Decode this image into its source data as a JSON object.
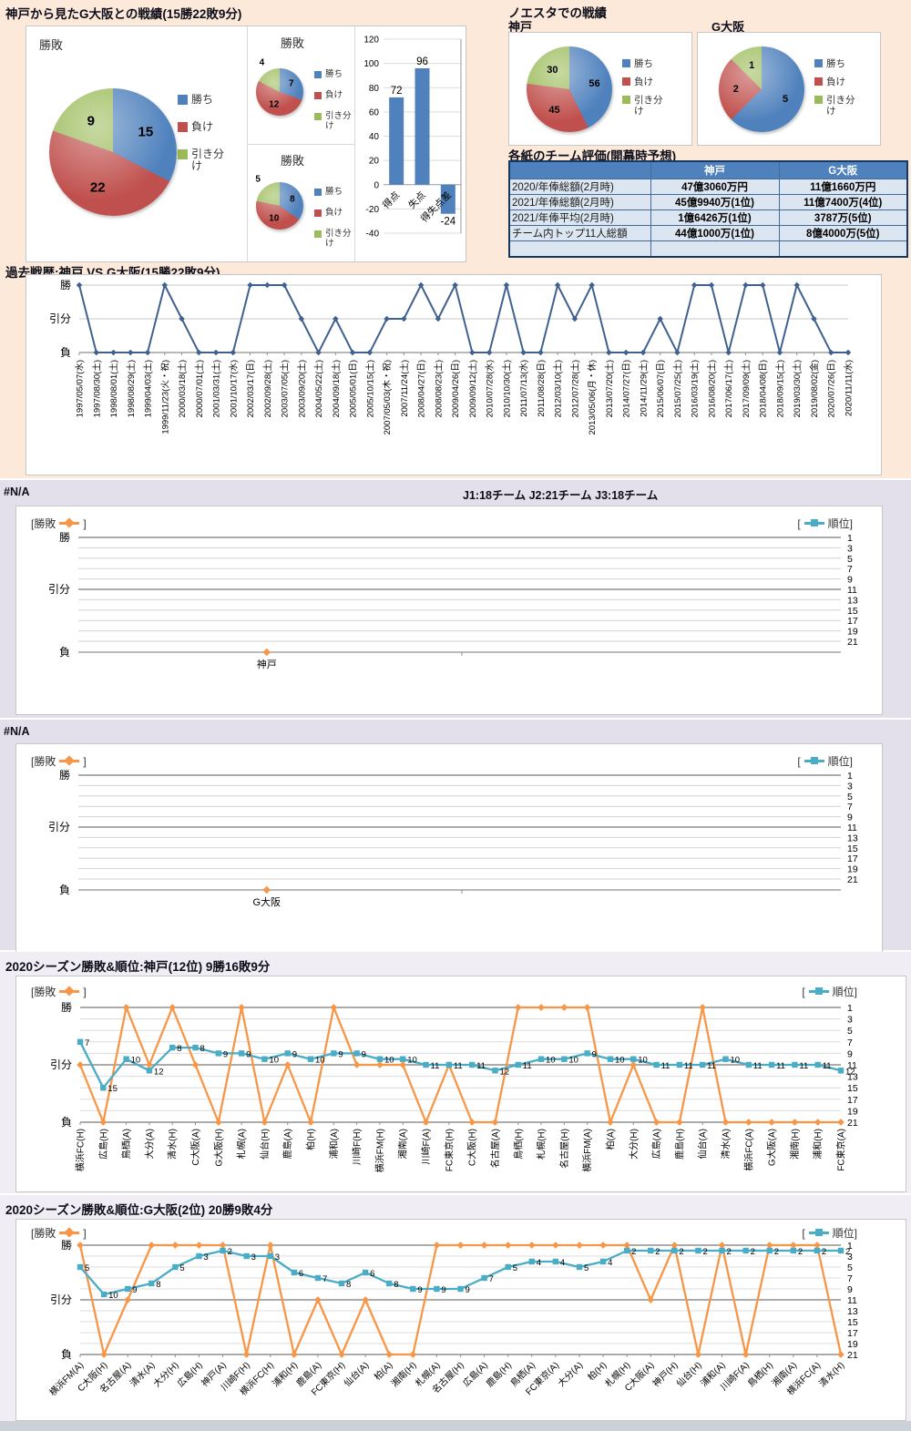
{
  "colors": {
    "win_blue": "#4f81bd",
    "lose_red": "#c0504d",
    "draw_green": "#9bbb59",
    "wdl_orange": "#f79646",
    "rank_teal": "#4bacc6",
    "history_line": "#40618f",
    "bar_blue": "#4f81bd",
    "table_header": "#4f81bd",
    "table_cell": "#dce6f1",
    "bg_top": "#fce9d9",
    "bg_na": "#e3dfeb",
    "bg_season": "#f0edf4"
  },
  "legend": {
    "wdl_open": "[勝敗",
    "wdl_close": "]",
    "rank_open": "[",
    "rank_close": "順位]"
  },
  "pie_legend_labels": [
    "勝ち",
    "負け",
    "引き分け"
  ],
  "wdl_axis": [
    "勝",
    "引分",
    "負"
  ],
  "rank_axis": [
    1,
    3,
    5,
    7,
    9,
    11,
    13,
    15,
    17,
    19,
    21
  ],
  "top": {
    "title": "神戸から見たG大阪との戦績(15勝22敗9分)"
  },
  "noesta": {
    "title": "ノエスタでの戦績",
    "left_team": "神戸",
    "right_team": "G大阪"
  },
  "table": {
    "title": "各紙のチーム評価(開幕時予想)",
    "columns": [
      "神戸",
      "G大阪"
    ],
    "rows": [
      [
        "2020/年俸総額(2月時)",
        "47億3060万円",
        "11億1660万円"
      ],
      [
        "2021/年俸総額(2月時)",
        "45億9940万(1位)",
        "11億7400万(4位)"
      ],
      [
        "2021/年俸平均(2月時)",
        "1億6426万(1位)",
        "3787万(5位)"
      ],
      [
        "チーム内トップ11人総額",
        "44億1000万(1位)",
        "8億4000万(5位)"
      ],
      [
        "",
        "",
        ""
      ]
    ]
  },
  "na1": {
    "label": "#N/A",
    "center_text": "J1:18チーム  J2:21チーム  J3:18チーム"
  },
  "na2": {
    "label": "#N/A",
    "center_text": ""
  },
  "chart_data": [
    {
      "id": "pie-main",
      "type": "pie",
      "title": "勝敗",
      "labels": [
        "勝ち",
        "負け",
        "引き分け"
      ],
      "values": [
        15,
        22,
        9
      ]
    },
    {
      "id": "pie-small-1",
      "type": "pie",
      "title": "勝敗",
      "labels": [
        "勝ち",
        "負け",
        "引き分け"
      ],
      "values": [
        7,
        12,
        4
      ]
    },
    {
      "id": "pie-small-2",
      "type": "pie",
      "title": "勝敗",
      "labels": [
        "勝ち",
        "負け",
        "引き分け"
      ],
      "values": [
        8,
        10,
        5
      ]
    },
    {
      "id": "bar-points",
      "type": "bar",
      "categories": [
        "得点",
        "失点",
        "得失点差"
      ],
      "values": [
        72,
        96,
        -24
      ],
      "ylim": [
        -40,
        120
      ],
      "ytick": 20
    },
    {
      "id": "pie-noesta-kobe",
      "type": "pie",
      "title": "神戸",
      "labels": [
        "勝ち",
        "負け",
        "引き分け"
      ],
      "values": [
        56,
        45,
        30
      ]
    },
    {
      "id": "pie-noesta-gosaka",
      "type": "pie",
      "title": "G大阪",
      "labels": [
        "勝ち",
        "負け",
        "引き分け"
      ],
      "values": [
        5,
        2,
        1
      ]
    },
    {
      "id": "history",
      "type": "line",
      "title": "過去戦歴:神戸 VS G大阪(15勝22敗9分)",
      "y_categories": [
        "勝",
        "引分",
        "負"
      ],
      "x": [
        "1997/05/07(水)",
        "1997/08/30(土)",
        "1998/08/01(土)",
        "1998/08/29(土)",
        "1999/04/03(土)",
        "1999/11/23(火・祝)",
        "2000/03/18(土)",
        "2000/07/01(土)",
        "2001/03/31(土)",
        "2001/10/17(水)",
        "2002/03/17(日)",
        "2002/09/28(土)",
        "2003/07/05(土)",
        "2003/09/20(土)",
        "2004/05/22(土)",
        "2004/09/18(土)",
        "2005/05/01(日)",
        "2005/10/15(土)",
        "2007/05/03(木・祝)",
        "2007/11/24(土)",
        "2008/04/27(日)",
        "2008/08/23(土)",
        "2009/04/26(日)",
        "2009/09/12(土)",
        "2010/07/28(水)",
        "2010/10/30(土)",
        "2011/07/13(水)",
        "2011/08/28(日)",
        "2012/03/10(土)",
        "2012/07/28(土)",
        "2013/05/06(月・休)",
        "2013/07/20(土)",
        "2014/07/27(日)",
        "2014/11/29(土)",
        "2015/06/07(日)",
        "2015/07/25(土)",
        "2016/03/19(土)",
        "2016/08/20(土)",
        "2017/06/17(土)",
        "2017/09/09(土)",
        "2018/04/08(日)",
        "2018/09/15(土)",
        "2019/03/30(土)",
        "2019/08/02(金)",
        "2020/07/26(日)",
        "2020/11/11(水)"
      ],
      "values": [
        "勝",
        "負",
        "負",
        "負",
        "負",
        "勝",
        "引分",
        "負",
        "負",
        "負",
        "勝",
        "勝",
        "勝",
        "引分",
        "負",
        "引分",
        "負",
        "負",
        "引分",
        "引分",
        "勝",
        "引分",
        "勝",
        "負",
        "負",
        "勝",
        "負",
        "負",
        "勝",
        "引分",
        "勝",
        "負",
        "負",
        "負",
        "引分",
        "負",
        "勝",
        "勝",
        "負",
        "勝",
        "勝",
        "負",
        "勝",
        "引分",
        "負",
        "負"
      ]
    },
    {
      "id": "na-kobe",
      "type": "line",
      "title": "#N/A",
      "categories": [
        "神戸"
      ],
      "series": []
    },
    {
      "id": "na-gosaka",
      "type": "line",
      "title": "#N/A",
      "categories": [
        "G大阪"
      ],
      "series": []
    },
    {
      "id": "season-kobe",
      "type": "line",
      "title": "2020シーズン勝敗&順位:神戸(12位) 9勝16敗9分",
      "categories": [
        "横浜FC(H)",
        "広島(H)",
        "鳥栖(A)",
        "大分(A)",
        "清水(H)",
        "C大阪(A)",
        "G大阪(H)",
        "札幌(A)",
        "仙台(H)",
        "鹿島(A)",
        "柏(H)",
        "浦和(A)",
        "川崎F(H)",
        "横浜FM(H)",
        "湘南(A)",
        "川崎F(A)",
        "FC東京(H)",
        "C大阪(H)",
        "名古屋(A)",
        "鳥栖(H)",
        "札幌(H)",
        "名古屋(H)",
        "横浜FM(A)",
        "柏(A)",
        "大分(H)",
        "広島(A)",
        "鹿島(H)",
        "仙台(A)",
        "清水(A)",
        "横浜FC(A)",
        "G大阪(A)",
        "湘南(H)",
        "浦和(H)",
        "FC東京(A)"
      ],
      "series": [
        {
          "name": "勝敗",
          "values": [
            "引分",
            "負",
            "勝",
            "引分",
            "勝",
            "引分",
            "負",
            "勝",
            "負",
            "引分",
            "負",
            "勝",
            "引分",
            "引分",
            "引分",
            "負",
            "引分",
            "負",
            "負",
            "勝",
            "勝",
            "勝",
            "勝",
            "負",
            "引分",
            "負",
            "負",
            "勝",
            "負",
            "負",
            "負",
            "負",
            "負",
            "負"
          ]
        },
        {
          "name": "順位",
          "values": [
            7,
            15,
            10,
            12,
            8,
            8,
            9,
            9,
            10,
            9,
            10,
            9,
            9,
            10,
            10,
            11,
            11,
            11,
            12,
            11,
            10,
            10,
            9,
            10,
            10,
            11,
            11,
            11,
            10,
            11,
            11,
            11,
            11,
            12
          ]
        }
      ],
      "right_axis_range": [
        1,
        21
      ]
    },
    {
      "id": "season-gosaka",
      "type": "line",
      "title": "2020シーズン勝敗&順位:G大阪(2位) 20勝9敗4分",
      "categories": [
        "横浜FM(A)",
        "C大阪(H)",
        "名古屋(A)",
        "清水(A)",
        "大分(H)",
        "広島(H)",
        "神戸(A)",
        "川崎F(H)",
        "横浜FC(H)",
        "浦和(H)",
        "鹿島(A)",
        "FC東京(H)",
        "仙台(A)",
        "柏(A)",
        "湘南(H)",
        "札幌(A)",
        "名古屋(H)",
        "広島(A)",
        "鹿島(H)",
        "鳥栖(A)",
        "FC東京(A)",
        "大分(A)",
        "柏(H)",
        "札幌(H)",
        "C大阪(A)",
        "神戸(H)",
        "仙台(H)",
        "浦和(A)",
        "川崎F(A)",
        "鳥栖(H)",
        "湘南(A)",
        "横浜FC(A)",
        "清水(H)"
      ],
      "series": [
        {
          "name": "勝敗",
          "values": [
            "勝",
            "負",
            "引分",
            "勝",
            "勝",
            "勝",
            "勝",
            "負",
            "勝",
            "負",
            "引分",
            "負",
            "引分",
            "負",
            "負",
            "勝",
            "勝",
            "勝",
            "勝",
            "勝",
            "勝",
            "勝",
            "勝",
            "勝",
            "引分",
            "勝",
            "負",
            "勝",
            "負",
            "勝",
            "勝",
            "勝",
            "負"
          ]
        },
        {
          "name": "順位",
          "values": [
            5,
            10,
            9,
            8,
            5,
            3,
            2,
            3,
            3,
            6,
            7,
            8,
            6,
            8,
            9,
            9,
            9,
            7,
            5,
            4,
            4,
            5,
            4,
            2,
            2,
            2,
            2,
            2,
            2,
            2,
            2,
            2,
            2
          ]
        }
      ],
      "right_axis_range": [
        1,
        21
      ]
    }
  ]
}
